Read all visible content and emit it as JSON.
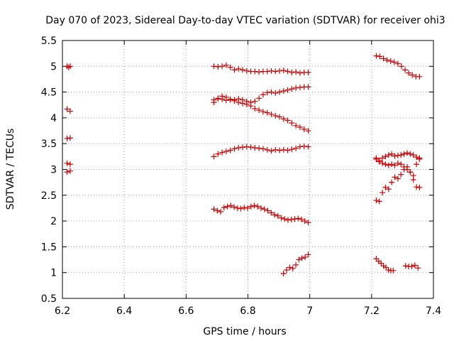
{
  "chart_data": {
    "type": "scatter",
    "title": "Day 070 of 2023, Sidereal Day-to-day VTEC variation (SDTVAR) for receiver ohi3",
    "xlabel": "GPS time / hours",
    "ylabel": "SDTVAR / TECUs",
    "xlim": [
      6.2,
      7.4
    ],
    "ylim": [
      0.5,
      5.5
    ],
    "xticks": [
      6.2,
      6.4,
      6.6,
      6.8,
      7.0,
      7.2,
      7.4
    ],
    "xtick_labels": [
      "6.2",
      "6.4",
      "6.6",
      "6.8",
      "7",
      "7.2",
      "7.4"
    ],
    "yticks": [
      0.5,
      1,
      1.5,
      2,
      2.5,
      3,
      3.5,
      4,
      4.5,
      5,
      5.5
    ],
    "ytick_labels": [
      "0.5",
      "1",
      "1.5",
      "2",
      "2.5",
      "3",
      "3.5",
      "4",
      "4.5",
      "5",
      "5.5"
    ],
    "grid": true,
    "marker": "+",
    "series_color": "#cc0000",
    "segments": [
      {
        "x0": 6.215,
        "x1": 6.225,
        "y": [
          5.0,
          4.98,
          5.0
        ]
      },
      {
        "x0": 6.215,
        "x1": 6.225,
        "y": [
          4.17,
          4.13
        ]
      },
      {
        "x0": 6.215,
        "x1": 6.225,
        "y": [
          3.6,
          3.61
        ]
      },
      {
        "x0": 6.215,
        "x1": 6.225,
        "y": [
          3.12,
          3.1
        ]
      },
      {
        "x0": 6.215,
        "x1": 6.225,
        "y": [
          2.95,
          2.97
        ]
      },
      {
        "x0": 6.69,
        "x1": 6.995,
        "y": [
          5.0,
          4.99,
          5.0,
          5.02,
          4.98,
          4.93,
          4.95,
          4.93,
          4.91,
          4.9,
          4.9,
          4.89,
          4.9,
          4.9,
          4.91,
          4.9,
          4.91,
          4.92,
          4.9,
          4.88,
          4.89,
          4.87,
          4.88,
          4.88
        ]
      },
      {
        "x0": 6.69,
        "x1": 6.995,
        "y": [
          4.3,
          4.38,
          4.42,
          4.4,
          4.36,
          4.35,
          4.37,
          4.35,
          4.32,
          4.3,
          4.32,
          4.38,
          4.45,
          4.49,
          4.5,
          4.48,
          4.5,
          4.52,
          4.54,
          4.56,
          4.58,
          4.59,
          4.6,
          4.6
        ]
      },
      {
        "x0": 6.69,
        "x1": 6.995,
        "y": [
          4.35,
          4.37,
          4.36,
          4.34,
          4.35,
          4.33,
          4.3,
          4.28,
          4.26,
          4.23,
          4.18,
          4.15,
          4.12,
          4.1,
          4.07,
          4.04,
          4.02,
          3.98,
          3.95,
          3.9,
          3.85,
          3.82,
          3.78,
          3.75
        ]
      },
      {
        "x0": 6.69,
        "x1": 6.995,
        "y": [
          3.25,
          3.3,
          3.33,
          3.35,
          3.37,
          3.4,
          3.42,
          3.43,
          3.44,
          3.43,
          3.42,
          3.41,
          3.4,
          3.38,
          3.36,
          3.38,
          3.37,
          3.38,
          3.37,
          3.39,
          3.41,
          3.44,
          3.45,
          3.44
        ]
      },
      {
        "x0": 6.69,
        "x1": 6.995,
        "y": [
          2.23,
          2.2,
          2.18,
          2.26,
          2.28,
          2.3,
          2.27,
          2.25,
          2.24,
          2.26,
          2.25,
          2.28,
          2.3,
          2.28,
          2.25,
          2.23,
          2.2,
          2.16,
          2.12,
          2.1,
          2.06,
          2.04,
          2.02,
          2.03,
          2.04,
          2.05,
          2.03,
          2.0,
          1.97
        ]
      },
      {
        "x0": 6.915,
        "x1": 6.995,
        "y": [
          0.98,
          1.05,
          1.1,
          1.08,
          1.15,
          1.25,
          1.28,
          1.3,
          1.35
        ]
      },
      {
        "x0": 7.215,
        "x1": 7.355,
        "y": [
          5.2,
          5.19,
          5.15,
          5.12,
          5.1,
          5.08,
          5.05,
          5.0,
          4.93,
          4.87,
          4.83,
          4.8,
          4.8
        ]
      },
      {
        "x0": 7.215,
        "x1": 7.355,
        "y": [
          3.2,
          3.17,
          3.22,
          3.25,
          3.28,
          3.3,
          3.26,
          3.27,
          3.28,
          3.3,
          3.32,
          3.3,
          3.28,
          3.24,
          3.22
        ]
      },
      {
        "x0": 7.215,
        "x1": 7.355,
        "y": [
          3.22,
          3.15,
          3.12,
          3.1,
          3.08,
          3.1,
          3.08,
          3.12,
          3.1,
          3.05,
          3.0,
          2.95,
          2.88,
          3.1,
          3.2
        ]
      },
      {
        "x0": 7.215,
        "x1": 7.355,
        "y": [
          2.4,
          2.38,
          2.55,
          2.65,
          2.62,
          2.75,
          2.85,
          2.82,
          2.9,
          3.0,
          3.05,
          2.95,
          2.8,
          2.66,
          2.65
        ]
      },
      {
        "x0": 7.215,
        "x1": 7.27,
        "y": [
          1.27,
          1.22,
          1.18,
          1.13,
          1.1,
          1.05,
          1.04,
          1.04
        ]
      },
      {
        "x0": 7.31,
        "x1": 7.35,
        "y": [
          1.13,
          1.12,
          1.12,
          1.14,
          1.09
        ]
      }
    ]
  }
}
